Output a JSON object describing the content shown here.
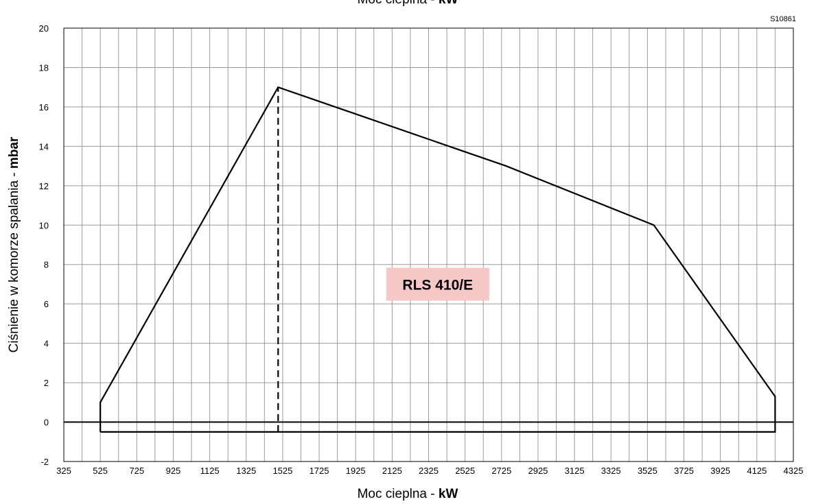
{
  "chart_data": {
    "type": "line",
    "top_title": {
      "text": "Moc cieplna - ",
      "unit": "kW"
    },
    "xlabel": {
      "text": "Moc cieplna - ",
      "unit": "kW"
    },
    "ylabel": {
      "text": "Ciśnienie w komorze spalania - ",
      "unit": "mbar"
    },
    "code_label": "S10861",
    "model_label": "RLS 410/E",
    "xlim": [
      325,
      4325
    ],
    "ylim": [
      -2,
      20
    ],
    "x_ticks": [
      "325",
      "525",
      "725",
      "925",
      "1125",
      "1325",
      "1525",
      "1725",
      "1925",
      "2125",
      "2325",
      "2525",
      "2725",
      "2925",
      "3125",
      "3325",
      "3525",
      "3725",
      "3925",
      "4125",
      "4325"
    ],
    "y_ticks": [
      "-2",
      "0",
      "2",
      "4",
      "6",
      "8",
      "10",
      "12",
      "14",
      "16",
      "18",
      "20"
    ],
    "x_tick_values": [
      325,
      525,
      725,
      925,
      1125,
      1325,
      1525,
      1725,
      1925,
      2125,
      2325,
      2525,
      2725,
      2925,
      3125,
      3325,
      3525,
      3725,
      3925,
      4125,
      4325
    ],
    "y_tick_values": [
      -2,
      0,
      2,
      4,
      6,
      8,
      10,
      12,
      14,
      16,
      18,
      20
    ],
    "x_minor_step": 100,
    "grid": true,
    "series": [
      {
        "points": [
          [
            525,
            -0.5
          ],
          [
            525,
            1.0
          ],
          [
            1500,
            17.0
          ],
          [
            2750,
            13.0
          ],
          [
            3560,
            10.0
          ],
          [
            4225,
            1.3
          ],
          [
            4225,
            -0.5
          ],
          [
            525,
            -0.5
          ]
        ]
      }
    ],
    "dashed_line": {
      "x": 1500,
      "y_from": -0.5,
      "y_to": 17.0
    },
    "label_position": {
      "x": 2375,
      "y": 7.0
    },
    "colors": {
      "line": "#000000",
      "grid": "#9a9a9a",
      "label_bg": "#f7c8c8"
    }
  }
}
